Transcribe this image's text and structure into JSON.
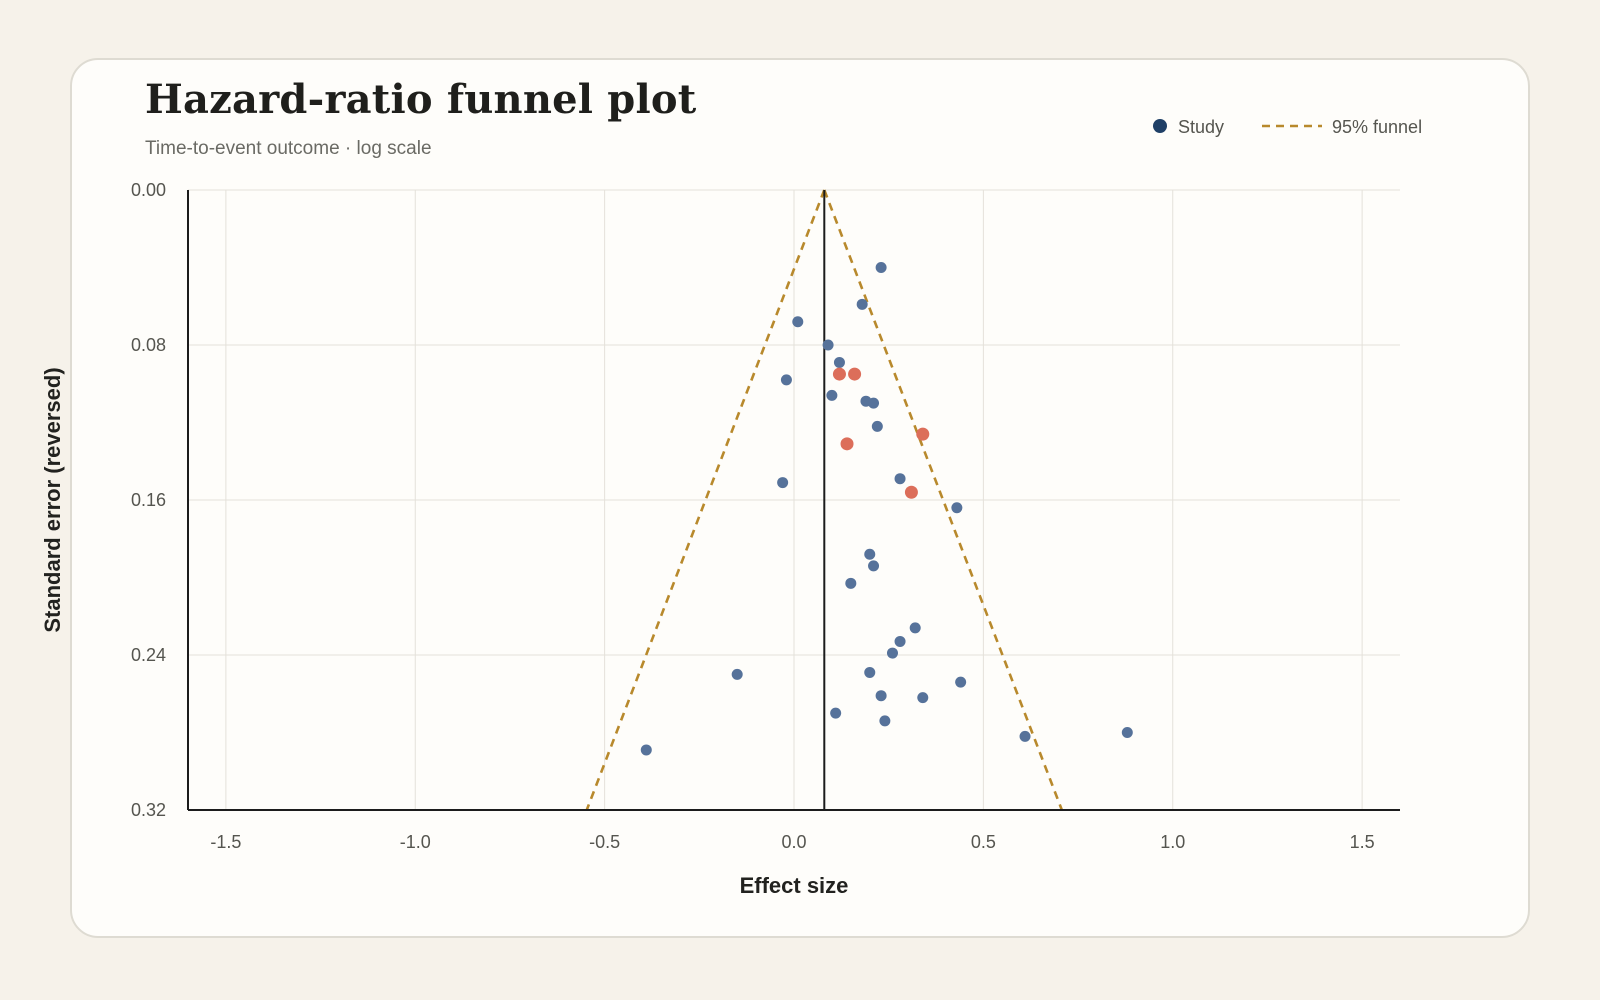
{
  "chart_data": {
    "type": "scatter",
    "title": "Hazard-ratio funnel plot",
    "subtitle": "Time-to-event outcome · log scale",
    "xlabel": "Effect size",
    "ylabel": "Standard error (reversed)",
    "xlim": [
      -1.6,
      1.6
    ],
    "ylim": [
      0.0,
      0.32
    ],
    "y_reversed": true,
    "x_ticks": [
      -1.5,
      -1.0,
      -0.5,
      0.0,
      0.5,
      1.0,
      1.5
    ],
    "x_tick_labels": [
      "-1.5",
      "-1.0",
      "-0.5",
      "0.0",
      "0.5",
      "1.0",
      "1.5"
    ],
    "y_ticks": [
      0.0,
      0.08,
      0.16,
      0.24,
      0.32
    ],
    "y_tick_labels": [
      "0.00",
      "0.08",
      "0.16",
      "0.24",
      "0.32"
    ],
    "grid": true,
    "legend_position": "top-right",
    "legend": [
      {
        "label": "Study",
        "kind": "marker",
        "color": "#1f3f66"
      },
      {
        "label": "95% funnel",
        "kind": "dashed-line",
        "color": "#b8892c"
      }
    ],
    "pooled_estimate": 0.08,
    "funnel_multiplier": 1.96,
    "colors": {
      "study": "#56729a",
      "highlighted": "#dc6e5a",
      "funnel": "#b8892c",
      "reference_line": "#1c1c1c"
    },
    "series": [
      {
        "name": "Study",
        "points": [
          {
            "x": 0.23,
            "y": 0.04
          },
          {
            "x": 0.18,
            "y": 0.059
          },
          {
            "x": 0.01,
            "y": 0.068
          },
          {
            "x": 0.09,
            "y": 0.08
          },
          {
            "x": 0.12,
            "y": 0.089
          },
          {
            "x": -0.02,
            "y": 0.098
          },
          {
            "x": 0.1,
            "y": 0.106
          },
          {
            "x": 0.19,
            "y": 0.109
          },
          {
            "x": 0.21,
            "y": 0.11
          },
          {
            "x": 0.22,
            "y": 0.122
          },
          {
            "x": -0.03,
            "y": 0.151
          },
          {
            "x": 0.28,
            "y": 0.149
          },
          {
            "x": 0.43,
            "y": 0.164
          },
          {
            "x": 0.2,
            "y": 0.188
          },
          {
            "x": 0.21,
            "y": 0.194
          },
          {
            "x": 0.15,
            "y": 0.203
          },
          {
            "x": 0.32,
            "y": 0.226
          },
          {
            "x": 0.28,
            "y": 0.233
          },
          {
            "x": 0.26,
            "y": 0.239
          },
          {
            "x": -0.15,
            "y": 0.25
          },
          {
            "x": 0.2,
            "y": 0.249
          },
          {
            "x": 0.44,
            "y": 0.254
          },
          {
            "x": 0.23,
            "y": 0.261
          },
          {
            "x": 0.34,
            "y": 0.262
          },
          {
            "x": 0.11,
            "y": 0.27
          },
          {
            "x": 0.24,
            "y": 0.274
          },
          {
            "x": 0.61,
            "y": 0.282
          },
          {
            "x": 0.88,
            "y": 0.28
          },
          {
            "x": -0.39,
            "y": 0.289
          }
        ]
      },
      {
        "name": "",
        "highlighted": true,
        "points": [
          {
            "x": 0.12,
            "y": 0.095
          },
          {
            "x": 0.16,
            "y": 0.095
          },
          {
            "x": 0.34,
            "y": 0.126
          },
          {
            "x": 0.14,
            "y": 0.131
          },
          {
            "x": 0.31,
            "y": 0.156
          }
        ]
      }
    ]
  }
}
